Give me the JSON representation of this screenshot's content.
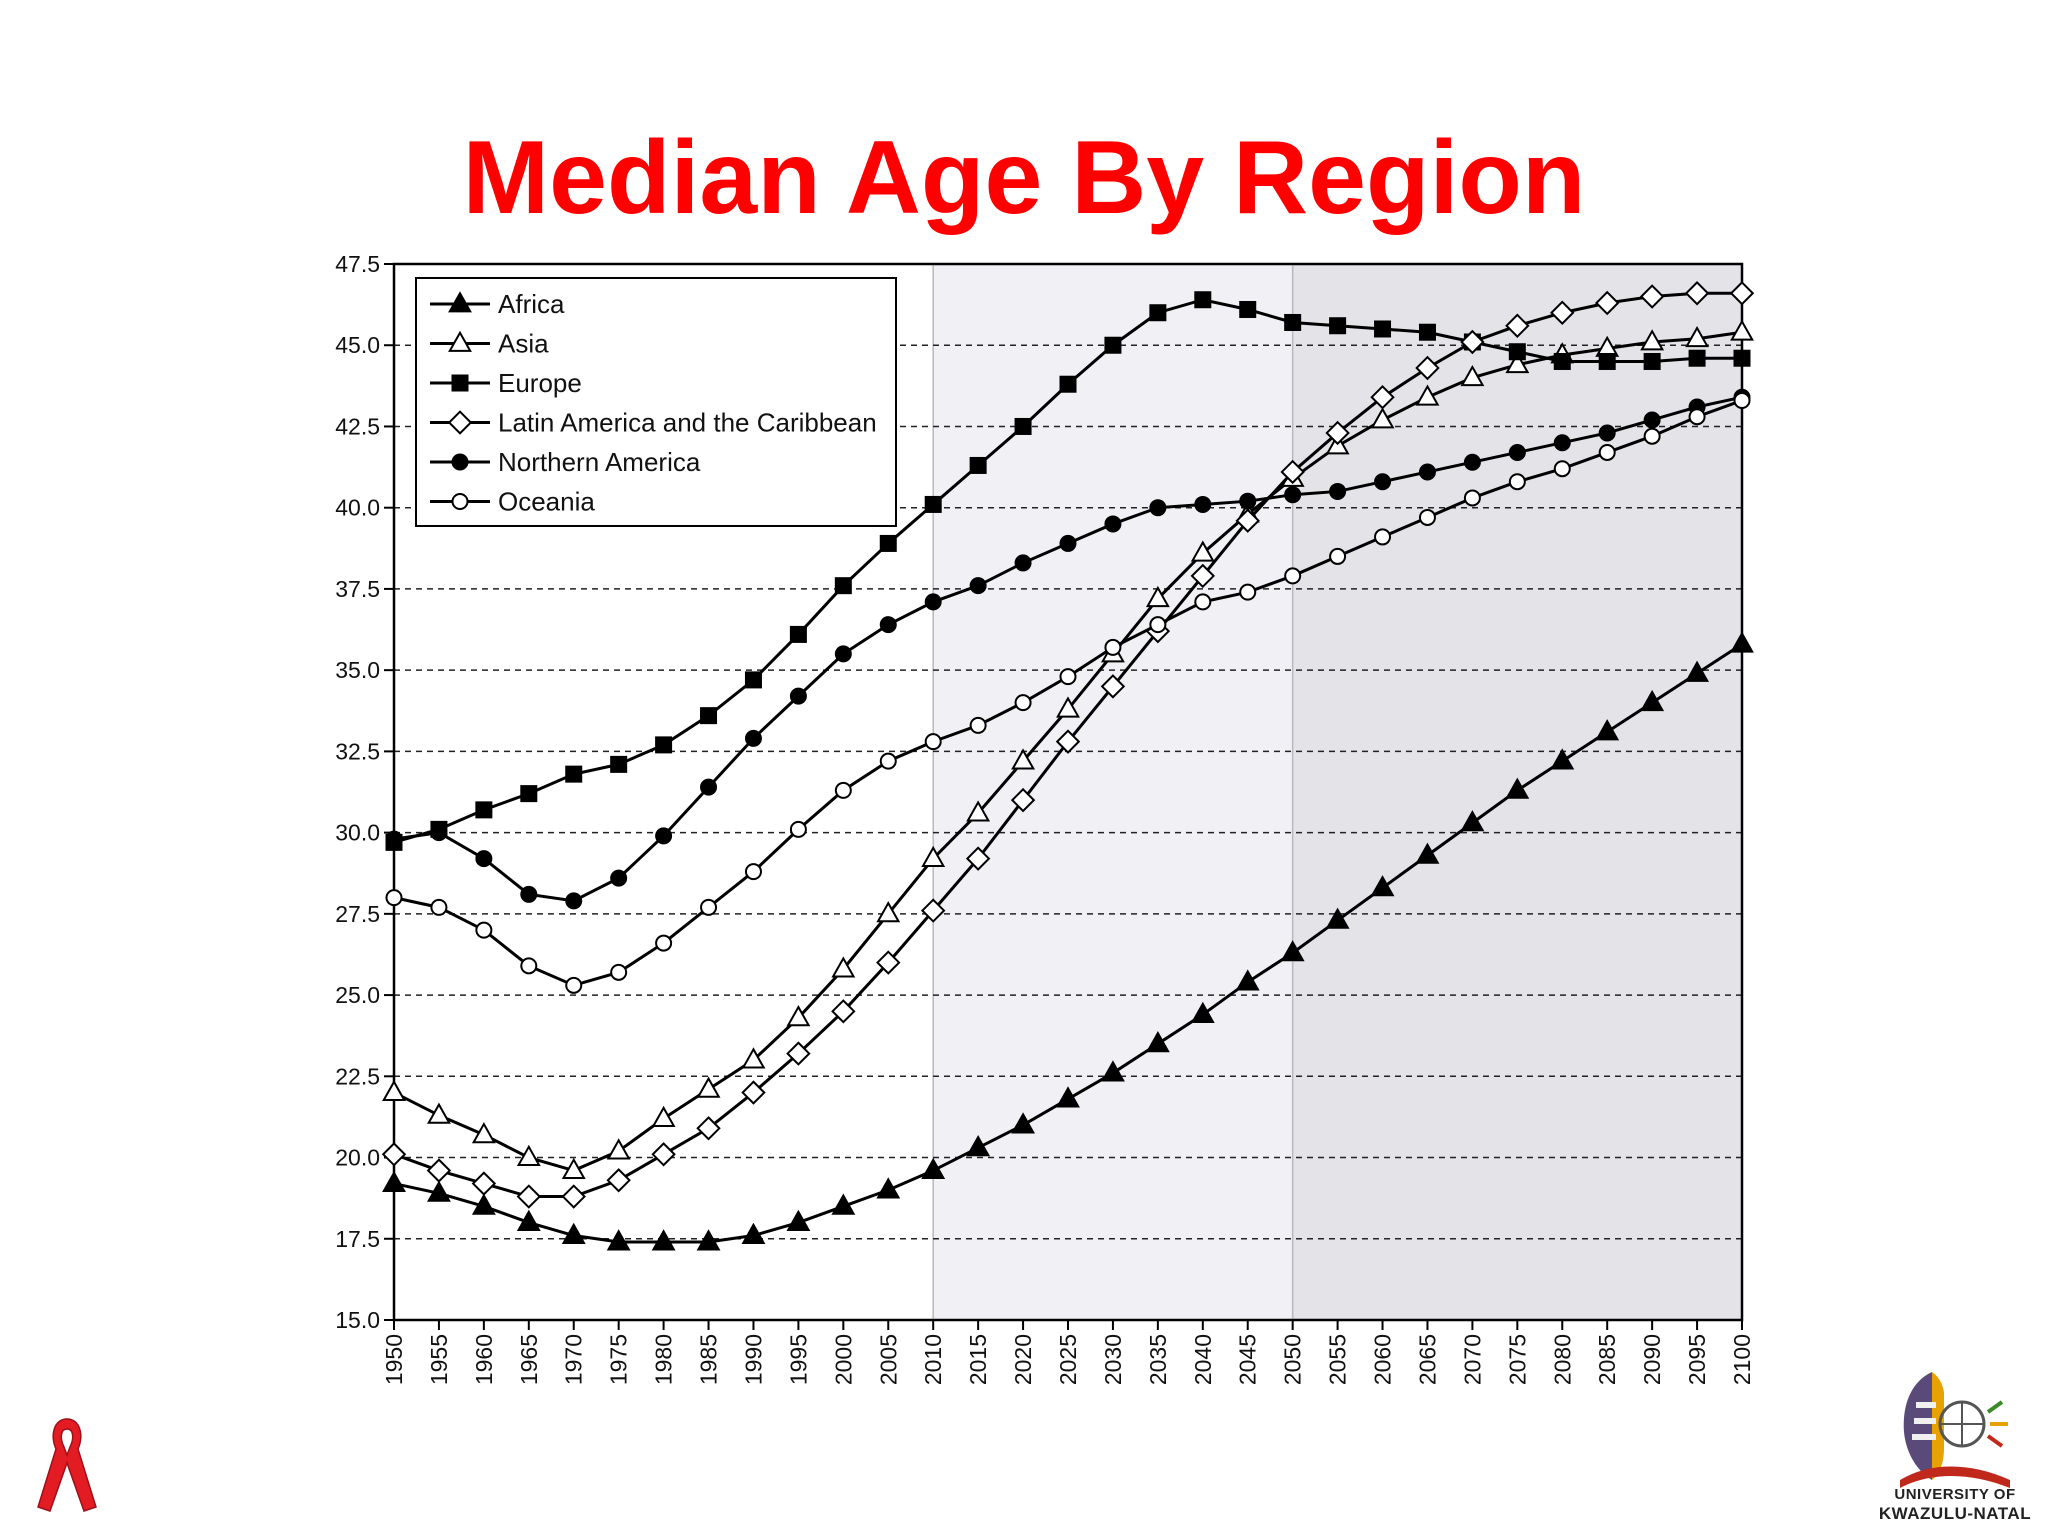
{
  "slide": {
    "title": "Median Age By Region",
    "title_color": "#ff0000"
  },
  "branding": {
    "ribbon_icon": "red-ribbon-icon",
    "ribbon_color": "#e31b23",
    "logo_icon": "university-shield-logo-icon",
    "logo_line1": "UNIVERSITY OF",
    "logo_line2": "KWAZULU-NATAL"
  },
  "chart_data": {
    "type": "line",
    "title": "",
    "xlabel": "",
    "ylabel": "",
    "ylim": [
      15.0,
      47.5
    ],
    "yticks": [
      "15.0",
      "17.5",
      "20.0",
      "22.5",
      "25.0",
      "27.5",
      "30.0",
      "32.5",
      "35.0",
      "37.5",
      "40.0",
      "42.5",
      "45.0",
      "47.5"
    ],
    "grid": "horizontal-dashed",
    "legend_placement": "top-left",
    "shaded_regions": [
      {
        "from": 2010,
        "to": 2050,
        "color": "#f1f0f4"
      },
      {
        "from": 2050,
        "to": 2100,
        "color": "#e4e3e8"
      }
    ],
    "x": [
      1950,
      1955,
      1960,
      1965,
      1970,
      1975,
      1980,
      1985,
      1990,
      1995,
      2000,
      2005,
      2010,
      2015,
      2020,
      2025,
      2030,
      2035,
      2040,
      2045,
      2050,
      2055,
      2060,
      2065,
      2070,
      2075,
      2080,
      2085,
      2090,
      2095,
      2100
    ],
    "series": [
      {
        "name": "Africa",
        "marker": "triangle",
        "fill": "filled",
        "values": [
          19.2,
          18.9,
          18.5,
          18.0,
          17.6,
          17.4,
          17.4,
          17.4,
          17.6,
          18.0,
          18.5,
          19.0,
          19.6,
          20.3,
          21.0,
          21.8,
          22.6,
          23.5,
          24.4,
          25.4,
          26.3,
          27.3,
          28.3,
          29.3,
          30.3,
          31.3,
          32.2,
          33.1,
          34.0,
          34.9,
          35.8
        ]
      },
      {
        "name": "Asia",
        "marker": "triangle",
        "fill": "open",
        "values": [
          22.0,
          21.3,
          20.7,
          20.0,
          19.6,
          20.2,
          21.2,
          22.1,
          23.0,
          24.3,
          25.8,
          27.5,
          29.2,
          30.6,
          32.2,
          33.8,
          35.5,
          37.2,
          38.6,
          39.8,
          40.9,
          41.9,
          42.7,
          43.4,
          44.0,
          44.4,
          44.7,
          44.9,
          45.1,
          45.2,
          45.4
        ]
      },
      {
        "name": "Europe",
        "marker": "square",
        "fill": "filled",
        "values": [
          29.7,
          30.1,
          30.7,
          31.2,
          31.8,
          32.1,
          32.7,
          33.6,
          34.7,
          36.1,
          37.6,
          38.9,
          40.1,
          41.3,
          42.5,
          43.8,
          45.0,
          46.0,
          46.4,
          46.1,
          45.7,
          45.6,
          45.5,
          45.4,
          45.1,
          44.8,
          44.5,
          44.5,
          44.5,
          44.6,
          44.6
        ]
      },
      {
        "name": "Latin America and the Caribbean",
        "marker": "diamond",
        "fill": "open",
        "values": [
          20.1,
          19.6,
          19.2,
          18.8,
          18.8,
          19.3,
          20.1,
          20.9,
          22.0,
          23.2,
          24.5,
          26.0,
          27.6,
          29.2,
          31.0,
          32.8,
          34.5,
          36.2,
          37.9,
          39.6,
          41.1,
          42.3,
          43.4,
          44.3,
          45.1,
          45.6,
          46.0,
          46.3,
          46.5,
          46.6,
          46.6
        ]
      },
      {
        "name": "Northern America",
        "marker": "circle",
        "fill": "filled",
        "values": [
          29.8,
          30.0,
          29.2,
          28.1,
          27.9,
          28.6,
          29.9,
          31.4,
          32.9,
          34.2,
          35.5,
          36.4,
          37.1,
          37.6,
          38.3,
          38.9,
          39.5,
          40.0,
          40.1,
          40.2,
          40.4,
          40.5,
          40.8,
          41.1,
          41.4,
          41.7,
          42.0,
          42.3,
          42.7,
          43.1,
          43.4
        ]
      },
      {
        "name": "Oceania",
        "marker": "circle",
        "fill": "open",
        "values": [
          28.0,
          27.7,
          27.0,
          25.9,
          25.3,
          25.7,
          26.6,
          27.7,
          28.8,
          30.1,
          31.3,
          32.2,
          32.8,
          33.3,
          34.0,
          34.8,
          35.7,
          36.4,
          37.1,
          37.4,
          37.9,
          38.5,
          39.1,
          39.7,
          40.3,
          40.8,
          41.2,
          41.7,
          42.2,
          42.8,
          43.3
        ]
      }
    ]
  }
}
